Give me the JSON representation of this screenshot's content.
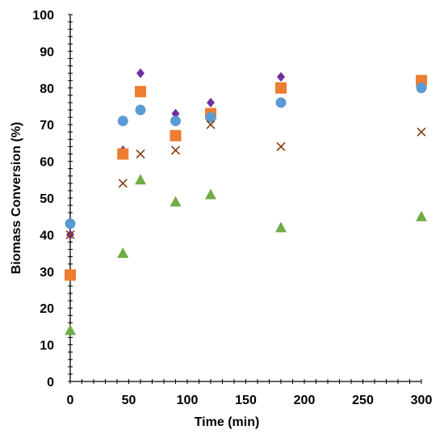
{
  "chart_data": {
    "type": "scatter",
    "title": "",
    "xlabel": "Time (min)",
    "ylabel": "Biomass Conversion (%)",
    "xlim": [
      0,
      300
    ],
    "ylim": [
      0,
      100
    ],
    "xticks": [
      0,
      50,
      100,
      150,
      200,
      250,
      300
    ],
    "yticks": [
      0,
      10,
      20,
      30,
      40,
      50,
      60,
      70,
      80,
      90,
      100
    ],
    "grid": false,
    "legend": "none",
    "series": [
      {
        "marker": "diamond",
        "color": "#7030A0",
        "points": [
          [
            0,
            40
          ],
          [
            45,
            63
          ],
          [
            60,
            84
          ],
          [
            90,
            73
          ],
          [
            120,
            76
          ],
          [
            180,
            83
          ],
          [
            300,
            82
          ]
        ]
      },
      {
        "marker": "square",
        "color": "#ED7D31",
        "points": [
          [
            0,
            29
          ],
          [
            45,
            62
          ],
          [
            60,
            79
          ],
          [
            90,
            67
          ],
          [
            120,
            73
          ],
          [
            180,
            80
          ],
          [
            300,
            82
          ]
        ]
      },
      {
        "marker": "circle",
        "color": "#5B9BD5",
        "points": [
          [
            0,
            43
          ],
          [
            45,
            71
          ],
          [
            60,
            74
          ],
          [
            90,
            71
          ],
          [
            120,
            72
          ],
          [
            180,
            76
          ],
          [
            300,
            80
          ]
        ]
      },
      {
        "marker": "cross",
        "color": "#843C0C",
        "points": [
          [
            0,
            40
          ],
          [
            45,
            54
          ],
          [
            60,
            62
          ],
          [
            90,
            63
          ],
          [
            120,
            70
          ],
          [
            180,
            64
          ],
          [
            300,
            68
          ]
        ]
      },
      {
        "marker": "triangle",
        "color": "#70AD47",
        "points": [
          [
            0,
            14
          ],
          [
            45,
            35
          ],
          [
            60,
            55
          ],
          [
            90,
            49
          ],
          [
            120,
            51
          ],
          [
            180,
            42
          ],
          [
            300,
            45
          ]
        ]
      }
    ]
  }
}
